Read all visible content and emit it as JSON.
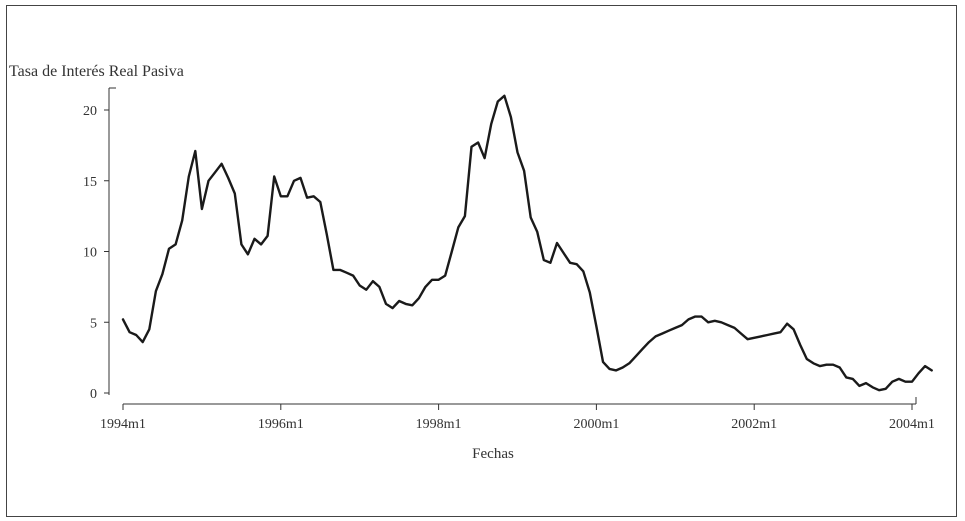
{
  "chart_data": {
    "type": "line",
    "title": "",
    "ylabel": "Tasa de Interés Real Pasiva",
    "xlabel": "Fechas",
    "x_start": "1994m1",
    "x_end": "2004m1",
    "x_ticks": [
      "1994m1",
      "1996m1",
      "1998m1",
      "2000m1",
      "2002m1",
      "2004m1"
    ],
    "y_ticks": [
      "0",
      "5",
      "10",
      "15",
      "20"
    ],
    "ylim": [
      0,
      21.5
    ],
    "grid": false,
    "series": [
      {
        "color": "#1a1a1a",
        "points": [
          [
            "1994m1",
            5.2
          ],
          [
            "1994m2",
            4.3
          ],
          [
            "1994m3",
            4.1
          ],
          [
            "1994m4",
            3.6
          ],
          [
            "1994m5",
            4.5
          ],
          [
            "1994m6",
            7.2
          ],
          [
            "1994m7",
            8.4
          ],
          [
            "1994m8",
            10.2
          ],
          [
            "1994m9",
            10.5
          ],
          [
            "1994m10",
            12.2
          ],
          [
            "1994m11",
            15.3
          ],
          [
            "1994m12",
            17.1
          ],
          [
            "1995m1",
            13.0
          ],
          [
            "1995m2",
            15.0
          ],
          [
            "1995m3",
            15.6
          ],
          [
            "1995m4",
            16.2
          ],
          [
            "1995m5",
            15.2
          ],
          [
            "1995m6",
            14.1
          ],
          [
            "1995m7",
            10.5
          ],
          [
            "1995m8",
            9.8
          ],
          [
            "1995m9",
            10.9
          ],
          [
            "1995m10",
            10.5
          ],
          [
            "1995m11",
            11.1
          ],
          [
            "1995m12",
            15.3
          ],
          [
            "1996m1",
            13.9
          ],
          [
            "1996m2",
            13.9
          ],
          [
            "1996m3",
            15.0
          ],
          [
            "1996m4",
            15.2
          ],
          [
            "1996m5",
            13.8
          ],
          [
            "1996m6",
            13.9
          ],
          [
            "1996m7",
            13.5
          ],
          [
            "1996m8",
            11.2
          ],
          [
            "1996m9",
            8.7
          ],
          [
            "1996m10",
            8.7
          ],
          [
            "1996m11",
            8.5
          ],
          [
            "1996m12",
            8.3
          ],
          [
            "1997m1",
            7.6
          ],
          [
            "1997m2",
            7.3
          ],
          [
            "1997m3",
            7.9
          ],
          [
            "1997m4",
            7.5
          ],
          [
            "1997m5",
            6.3
          ],
          [
            "1997m6",
            6.0
          ],
          [
            "1997m7",
            6.5
          ],
          [
            "1997m8",
            6.3
          ],
          [
            "1997m9",
            6.2
          ],
          [
            "1997m10",
            6.7
          ],
          [
            "1997m11",
            7.5
          ],
          [
            "1997m12",
            8.0
          ],
          [
            "1998m1",
            8.0
          ],
          [
            "1998m2",
            8.3
          ],
          [
            "1998m3",
            10.0
          ],
          [
            "1998m4",
            11.7
          ],
          [
            "1998m5",
            12.5
          ],
          [
            "1998m6",
            17.4
          ],
          [
            "1998m7",
            17.7
          ],
          [
            "1998m8",
            16.6
          ],
          [
            "1998m9",
            19.0
          ],
          [
            "1998m10",
            20.6
          ],
          [
            "1998m11",
            21.0
          ],
          [
            "1998m12",
            19.5
          ],
          [
            "1999m1",
            17.0
          ],
          [
            "1999m2",
            15.7
          ],
          [
            "1999m3",
            12.4
          ],
          [
            "1999m4",
            11.4
          ],
          [
            "1999m5",
            9.4
          ],
          [
            "1999m6",
            9.2
          ],
          [
            "1999m7",
            10.6
          ],
          [
            "1999m8",
            9.9
          ],
          [
            "1999m9",
            9.2
          ],
          [
            "1999m10",
            9.1
          ],
          [
            "1999m11",
            8.6
          ],
          [
            "1999m12",
            7.1
          ],
          [
            "2000m1",
            4.7
          ],
          [
            "2000m2",
            2.2
          ],
          [
            "2000m3",
            1.7
          ],
          [
            "2000m4",
            1.6
          ],
          [
            "2000m5",
            1.8
          ],
          [
            "2000m6",
            2.1
          ],
          [
            "2000m7",
            2.6
          ],
          [
            "2000m8",
            3.1
          ],
          [
            "2000m9",
            3.6
          ],
          [
            "2000m10",
            4.0
          ],
          [
            "2000m11",
            4.2
          ],
          [
            "2000m12",
            4.4
          ],
          [
            "2001m1",
            4.6
          ],
          [
            "2001m2",
            4.8
          ],
          [
            "2001m3",
            5.2
          ],
          [
            "2001m4",
            5.4
          ],
          [
            "2001m5",
            5.4
          ],
          [
            "2001m6",
            5.0
          ],
          [
            "2001m7",
            5.1
          ],
          [
            "2001m8",
            5.0
          ],
          [
            "2001m9",
            4.8
          ],
          [
            "2001m10",
            4.6
          ],
          [
            "2001m11",
            4.2
          ],
          [
            "2001m12",
            3.8
          ],
          [
            "2002m1",
            3.9
          ],
          [
            "2002m2",
            4.0
          ],
          [
            "2002m3",
            4.1
          ],
          [
            "2002m4",
            4.2
          ],
          [
            "2002m5",
            4.3
          ],
          [
            "2002m6",
            4.9
          ],
          [
            "2002m7",
            4.5
          ],
          [
            "2002m8",
            3.4
          ],
          [
            "2002m9",
            2.4
          ],
          [
            "2002m10",
            2.1
          ],
          [
            "2002m11",
            1.9
          ],
          [
            "2002m12",
            2.0
          ],
          [
            "2003m1",
            2.0
          ],
          [
            "2003m2",
            1.8
          ],
          [
            "2003m3",
            1.1
          ],
          [
            "2003m4",
            1.0
          ],
          [
            "2003m5",
            0.5
          ],
          [
            "2003m6",
            0.7
          ],
          [
            "2003m7",
            0.4
          ],
          [
            "2003m8",
            0.2
          ],
          [
            "2003m9",
            0.3
          ],
          [
            "2003m10",
            0.8
          ],
          [
            "2003m11",
            1.0
          ],
          [
            "2003m12",
            0.8
          ],
          [
            "2004m1",
            0.8
          ],
          [
            "2004m2",
            1.4
          ],
          [
            "2004m3",
            1.9
          ],
          [
            "2004m4",
            1.6
          ]
        ]
      }
    ]
  }
}
